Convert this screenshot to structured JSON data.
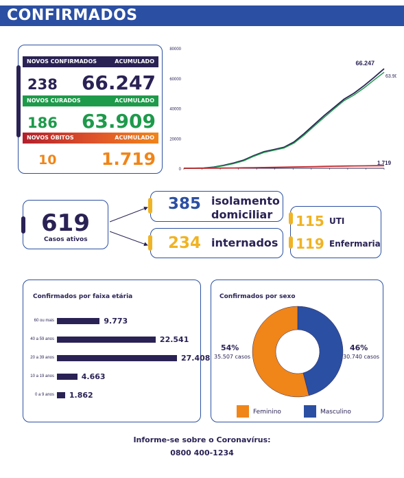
{
  "header": {
    "title": "CONFIRMADOS"
  },
  "stats": {
    "confirmed": {
      "label": "NOVOS CONFIRMADOS",
      "acc_label": "ACUMULADO",
      "new": "238",
      "total": "66.247"
    },
    "recovered": {
      "label": "NOVOS CURADOS",
      "acc_label": "ACUMULADO",
      "new": "186",
      "total": "63.909"
    },
    "deaths": {
      "label": "NOVOS ÓBITOS",
      "acc_label": "ACUMULADO",
      "new": "10",
      "total": "1.719"
    }
  },
  "colors": {
    "navy": "#2a2254",
    "blue": "#2b4fa2",
    "green": "#1e9a4b",
    "red": "#c0272d",
    "orange": "#f08519",
    "yellow": "#f0b323"
  },
  "chart_data": [
    {
      "type": "line",
      "title": "",
      "ylim": [
        0,
        80000
      ],
      "yticks": [
        "0",
        "20000",
        "40000",
        "60000",
        "80000"
      ],
      "series": [
        {
          "values": [
            0,
            50,
            200,
            800,
            2000,
            3500,
            5500,
            8500,
            11000,
            12500,
            14000,
            17500,
            23000,
            29000,
            35000,
            40500,
            46000,
            50000,
            55000,
            60500,
            66247
          ],
          "end_label": "66.247"
        },
        {
          "values": [
            0,
            30,
            150,
            600,
            1700,
            3100,
            5000,
            8000,
            10500,
            12000,
            13500,
            16800,
            22000,
            28000,
            33800,
            39500,
            45000,
            48800,
            53500,
            58800,
            63909
          ],
          "end_label": "63.909"
        },
        {
          "values": [
            0,
            5,
            20,
            60,
            120,
            200,
            300,
            420,
            520,
            620,
            720,
            850,
            980,
            1100,
            1230,
            1350,
            1450,
            1540,
            1620,
            1680,
            1719
          ],
          "end_label": "1.719"
        }
      ]
    },
    {
      "type": "bar",
      "title": "Confirmados por faixa etária",
      "categories": [
        "60 ou mais",
        "40 a 59 anos",
        "20 a 39 anos",
        "10 a 19 anos",
        "0 a 9 anos"
      ],
      "values": [
        9773,
        22541,
        27408,
        4663,
        1862
      ],
      "value_labels": [
        "9.773",
        "22.541",
        "27.408",
        "4.663",
        "1.862"
      ]
    },
    {
      "type": "pie",
      "title": "Confirmados por sexo",
      "categories": [
        "Feminino",
        "Masculino"
      ],
      "values": [
        54,
        46
      ],
      "pct_labels": [
        "54%",
        "46%"
      ],
      "count_labels": [
        "35.507 casos",
        "30.740 casos"
      ],
      "colors": [
        "#f08519",
        "#2b4fa2"
      ]
    }
  ],
  "active": {
    "total": "619",
    "total_label": "Casos ativos",
    "isolation": {
      "value": "385",
      "label": "isolamento",
      "label2": "domiciliar"
    },
    "hospital": {
      "value": "234",
      "label": "internados"
    },
    "uti": {
      "value": "115",
      "label": "UTI"
    },
    "ward": {
      "value": "119",
      "label": "Enfermaria"
    }
  },
  "footer": {
    "line1": "Informe-se sobre o Coronavírus:",
    "line2": "0800 400-1234"
  }
}
